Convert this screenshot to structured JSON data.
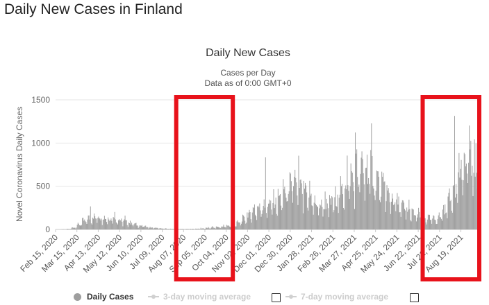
{
  "page": {
    "title": "Daily New Cases in Finland"
  },
  "chart_data": {
    "type": "bar",
    "title": "Daily New Cases",
    "subtitle_lines": [
      "Cases per Day",
      "Data as of 0:00 GMT+0"
    ],
    "ylabel": "Novel Coronavirus Daily Cases",
    "xlabel": "",
    "ylim": [
      0,
      1500
    ],
    "yticks": [
      0,
      500,
      1000,
      1500
    ],
    "grid": true,
    "legend_position": "bottom",
    "x_range": [
      "2020-02-15",
      "2021-09-12"
    ],
    "xtick_labels": [
      "Feb 15, 2020",
      "Mar 15, 2020",
      "Apr 13, 2020",
      "May 12, 2020",
      "Jun 10, 2020",
      "Jul 09, 2020",
      "Aug 07, 2020",
      "Sep 05, 2020",
      "Oct 04, 2020",
      "Nov 02, 2020",
      "Dec 01, 2020",
      "Dec 30, 2020",
      "Jan 28, 2021",
      "Feb 26, 2021",
      "Mar 27, 2021",
      "Apr 25, 2021",
      "May 24, 2021",
      "Jun 22, 2021",
      "Jul 21, 2021",
      "Aug 19, 2021"
    ],
    "series": [
      {
        "name": "Daily Cases",
        "color": "#a0a0a0",
        "weekly_avg_daily_values": [
          0,
          2,
          5,
          20,
          50,
          90,
          120,
          135,
          140,
          130,
          120,
          110,
          100,
          85,
          70,
          55,
          40,
          30,
          20,
          15,
          10,
          8,
          6,
          5,
          5,
          5,
          6,
          8,
          10,
          15,
          20,
          25,
          30,
          40,
          50,
          70,
          110,
          160,
          200,
          230,
          250,
          270,
          300,
          330,
          400,
          470,
          480,
          430,
          380,
          330,
          280,
          260,
          260,
          280,
          330,
          400,
          500,
          560,
          600,
          640,
          660,
          620,
          540,
          460,
          380,
          330,
          280,
          240,
          200,
          170,
          145,
          130,
          120,
          110,
          140,
          210,
          320,
          480,
          620,
          700,
          760,
          720,
          620,
          500,
          460
        ],
        "annotated_peaks": [
          {
            "date": "2020-04-02",
            "value": 267
          },
          {
            "date": "2020-11-26",
            "value": 834
          },
          {
            "date": "2021-03-17",
            "value": 855
          },
          {
            "date": "2021-08-10",
            "value": 1314
          }
        ]
      }
    ],
    "annotations": [
      {
        "type": "highlight-box",
        "color": "#e8121b",
        "from": "2020-07-28",
        "to": "2020-10-12"
      },
      {
        "type": "highlight-box",
        "color": "#e8121b",
        "from": "2021-06-28",
        "to": "2021-09-12"
      }
    ]
  },
  "legend": {
    "items": [
      {
        "label": "Daily Cases",
        "active": true
      },
      {
        "label": "3-day moving average",
        "active": false
      },
      {
        "label": "7-day moving average",
        "active": false
      }
    ]
  }
}
